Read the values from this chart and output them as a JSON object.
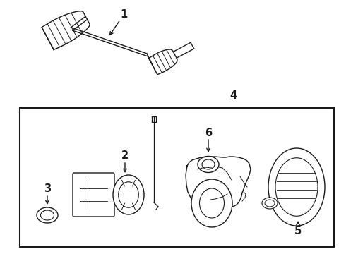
{
  "bg_color": "#ffffff",
  "line_color": "#1a1a1a",
  "fig_width": 4.9,
  "fig_height": 3.6,
  "dpi": 100,
  "label_fontsize": 10.5,
  "label_fontweight": "bold"
}
